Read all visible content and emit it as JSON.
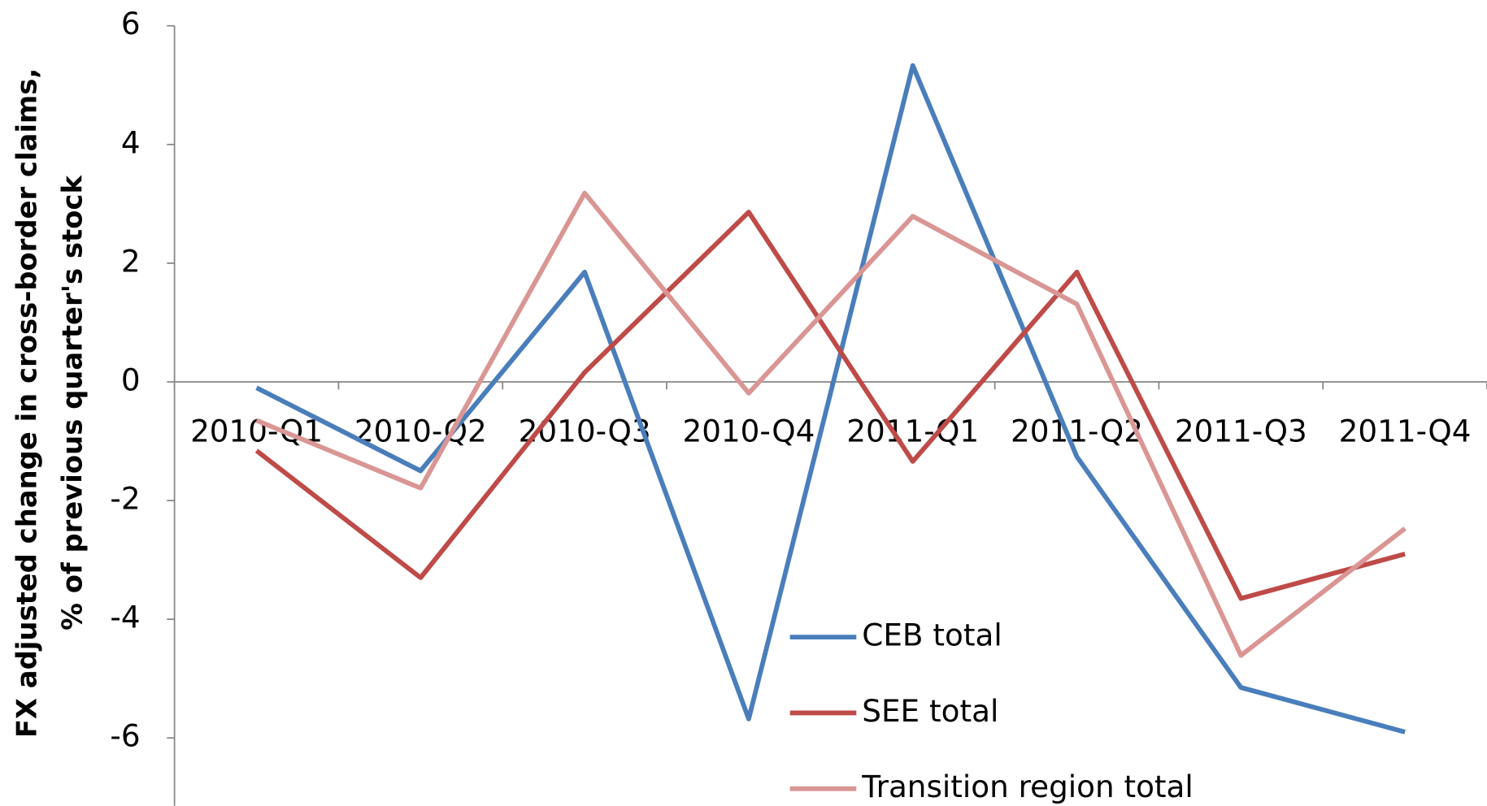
{
  "chart_data": {
    "type": "line",
    "ylabel": [
      "FX adjusted change in cross-border claims,",
      "% of previous quarter's stock"
    ],
    "categories": [
      "2010-Q1",
      "2010-Q2",
      "2010-Q3",
      "2010-Q4",
      "2011-Q1",
      "2011-Q2",
      "2011-Q3",
      "2011-Q4"
    ],
    "series": [
      {
        "name": "CEB total",
        "color": "#4a7ebb",
        "values": [
          -0.1,
          -1.5,
          1.85,
          -5.68,
          5.33,
          -1.26,
          -5.15,
          -5.9
        ]
      },
      {
        "name": "SEE total",
        "color": "#be4b48",
        "values": [
          -1.16,
          -3.3,
          0.16,
          2.86,
          -1.34,
          1.85,
          -3.65,
          -2.9
        ]
      },
      {
        "name": "Transition region total",
        "color": "#d99694",
        "values": [
          -0.65,
          -1.79,
          3.18,
          -0.19,
          2.79,
          1.31,
          -4.61,
          -2.47
        ]
      }
    ],
    "ylim": [
      -7,
      6
    ],
    "yticks": [
      -6,
      -4,
      -2,
      0,
      2,
      4,
      6
    ]
  }
}
